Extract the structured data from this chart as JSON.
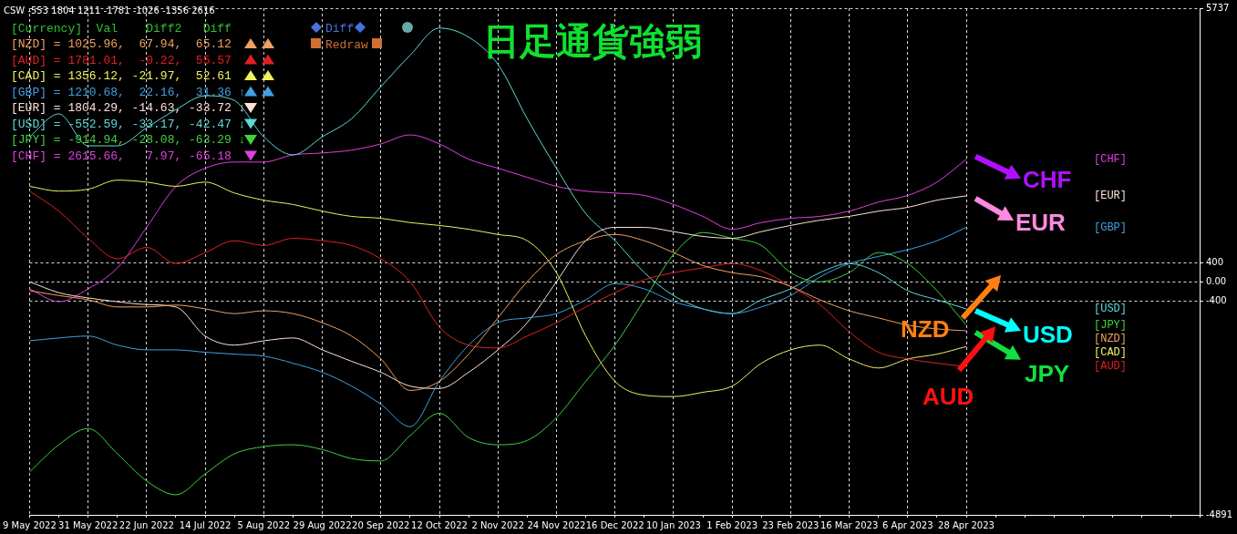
{
  "chart_data": {
    "type": "line",
    "title": "日足通貨強弱",
    "categories": [
      "9 May 2022",
      null,
      "31 May 2022",
      null,
      "22 Jun 2022",
      null,
      "14 Jul 2022",
      null,
      "5 Aug 2022",
      null,
      "29 Aug 2022",
      null,
      "20 Sep 2022",
      null,
      "12 Oct 2022",
      null,
      "2 Nov 2022",
      null,
      "24 Nov 2022",
      null,
      "16 Dec 2022",
      null,
      "10 Jan 2023",
      null,
      "1 Feb 2023",
      null,
      "23 Feb 2023",
      null,
      "16 Mar 2023",
      null,
      "6 Apr 2023",
      null,
      "28 Apr 2023",
      null,
      null,
      null,
      null,
      null,
      null,
      null,
      null
    ],
    "series": [
      {
        "name": "[NZD]",
        "color": "#f0a060",
        "values": [
          -190,
          -290,
          -380,
          -530,
          -530,
          -490,
          -570,
          -670,
          -610,
          -670,
          -860,
          -1140,
          -1620,
          -2280,
          -2090,
          -1520,
          -760,
          0,
          570,
          860,
          990,
          860,
          610,
          340,
          190,
          100,
          -100,
          -380,
          -610,
          -760,
          -910,
          -990,
          -1030,
          null,
          null,
          null,
          null,
          null,
          null,
          null,
          null
        ]
      },
      {
        "name": "[AUD]",
        "color": "#e02020",
        "values": [
          1900,
          1480,
          910,
          480,
          720,
          380,
          610,
          860,
          760,
          910,
          860,
          760,
          480,
          0,
          -950,
          -1330,
          -1390,
          -1140,
          -860,
          -530,
          -230,
          40,
          190,
          290,
          380,
          230,
          -100,
          -480,
          -1050,
          -1480,
          -1620,
          -1710,
          -1780,
          null,
          null,
          null,
          null,
          null,
          null,
          null,
          null
        ]
      },
      {
        "name": "[CAD]",
        "color": "#f0f060",
        "values": [
          2000,
          1900,
          1940,
          2130,
          2090,
          2000,
          2090,
          1860,
          1710,
          1620,
          1480,
          1370,
          1330,
          1240,
          1180,
          1100,
          990,
          860,
          190,
          -1140,
          -2090,
          -2380,
          -2410,
          -2320,
          -2190,
          -1710,
          -1430,
          -1330,
          -1620,
          -1810,
          -1620,
          -1520,
          -1360,
          null,
          null,
          null,
          null,
          null,
          null,
          null,
          null
        ]
      },
      {
        "name": "[GBP]",
        "color": "#40a0e0",
        "values": [
          -1240,
          -1180,
          -1140,
          -1330,
          -1430,
          -1430,
          -1480,
          -1520,
          -1560,
          -1710,
          -1900,
          -2190,
          -2570,
          -3040,
          -2090,
          -1330,
          -860,
          -760,
          -670,
          -380,
          -40,
          -150,
          -420,
          -570,
          -670,
          -530,
          -290,
          100,
          380,
          530,
          670,
          860,
          1140,
          null,
          null,
          null,
          null,
          null,
          null,
          null,
          null
        ]
      },
      {
        "name": "[EUR]",
        "color": "#ffe0d8",
        "values": [
          0,
          -230,
          -340,
          -420,
          -480,
          -530,
          -1140,
          -1330,
          -1240,
          -1180,
          -1430,
          -1670,
          -1900,
          -2190,
          -2240,
          -1900,
          -1430,
          -860,
          0,
          860,
          1140,
          1140,
          1050,
          950,
          910,
          1050,
          1180,
          1290,
          1370,
          1480,
          1560,
          1710,
          1800,
          null,
          null,
          null,
          null,
          null,
          null,
          null,
          null
        ]
      },
      {
        "name": "[USD]",
        "color": "#60d8d8",
        "values": [
          3040,
          3520,
          2850,
          2850,
          3230,
          3610,
          3900,
          3800,
          3040,
          2660,
          3040,
          3420,
          4090,
          4750,
          5320,
          5130,
          4560,
          3420,
          2380,
          1430,
          860,
          190,
          -290,
          -570,
          -670,
          -380,
          -150,
          190,
          380,
          190,
          -190,
          -380,
          -570,
          null,
          null,
          null,
          null,
          null,
          null,
          null,
          null
        ]
      },
      {
        "name": "[JPY]",
        "color": "#40d040",
        "values": [
          -3990,
          -3420,
          -3080,
          -3610,
          -4180,
          -4470,
          -4030,
          -3610,
          -3460,
          -3420,
          -3520,
          -3710,
          -3760,
          -3230,
          -2760,
          -3270,
          -3420,
          -3330,
          -2850,
          -2090,
          -1330,
          -380,
          570,
          1030,
          910,
          760,
          190,
          0,
          190,
          610,
          380,
          -190,
          -910,
          null,
          null,
          null,
          null,
          null,
          null,
          null,
          null
        ]
      },
      {
        "name": "[CHF]",
        "color": "#e040e0",
        "values": [
          -150,
          -420,
          -150,
          290,
          1140,
          2000,
          2380,
          2510,
          2510,
          2660,
          2700,
          2760,
          2890,
          3080,
          2890,
          2570,
          2380,
          2190,
          2000,
          1900,
          1860,
          1810,
          1620,
          1370,
          1100,
          1240,
          1330,
          1370,
          1480,
          1670,
          1810,
          2090,
          2570,
          null,
          null,
          null,
          null,
          null,
          null,
          null,
          null
        ]
      }
    ],
    "ylim": [
      -4891,
      5737
    ],
    "yticks": [
      5737,
      400,
      {
        "value": 0,
        "label": "0.00"
      },
      -400,
      -4891
    ],
    "grid": true,
    "legend": false,
    "annotations": [
      "CSW -553 1804 1211 -1781 -1026 -1356 2616",
      "[Currency]  Val    Diff2   Diff",
      "[NZD] = 1025.96,  67.94,  65.12",
      "[AUD] = 1781.01,  -0.22,  55.57",
      "[CAD] = 1356.12, -21.97,  52.61",
      "[GBP] = 1210.68,  22.16,  31.36 ↑",
      "[EUR] = 1804.29, -14.63, -33.72 ↓",
      "[USD] = -552.59, -33.17, -42.47 ↓",
      "[JPY] = -914.94, -28.08, -63.29 ↓",
      "[CHF] = 2615.66,   7.97, -65.18",
      "Diff",
      "Redraw",
      {
        "text": "CHF",
        "x": "28 Apr 2023",
        "y": 2570
      },
      {
        "text": "EUR",
        "x": "28 Apr 2023",
        "y": 1800
      },
      {
        "text": "NZD",
        "x": "28 Apr 2023",
        "y": -1030
      },
      {
        "text": "USD",
        "x": "28 Apr 2023",
        "y": -570
      },
      {
        "text": "JPY",
        "x": "28 Apr 2023",
        "y": -910
      },
      {
        "text": "AUD",
        "x": "28 Apr 2023",
        "y": -1780
      }
    ]
  }
}
